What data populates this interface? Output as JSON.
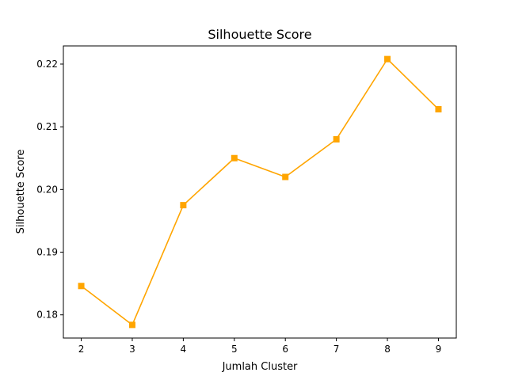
{
  "chart_data": {
    "type": "line",
    "title": "Silhouette Score",
    "xlabel": "Jumlah Cluster",
    "ylabel": "Silhouette Score",
    "x": [
      2,
      3,
      4,
      5,
      6,
      7,
      8,
      9
    ],
    "series": [
      {
        "values": [
          0.1846,
          0.1784,
          0.1975,
          0.205,
          0.202,
          0.208,
          0.2208,
          0.2128
        ],
        "color": "#FFA500",
        "marker": "square"
      }
    ],
    "xlim": [
      1.65,
      9.35
    ],
    "ylim": [
      0.1763,
      0.2229
    ],
    "xticks": [
      "2",
      "3",
      "4",
      "5",
      "6",
      "7",
      "8",
      "9"
    ],
    "yticks": [
      "0.18",
      "0.19",
      "0.20",
      "0.21",
      "0.22"
    ],
    "ytick_values": [
      0.18,
      0.19,
      0.2,
      0.21,
      0.22
    ],
    "grid": false
  }
}
